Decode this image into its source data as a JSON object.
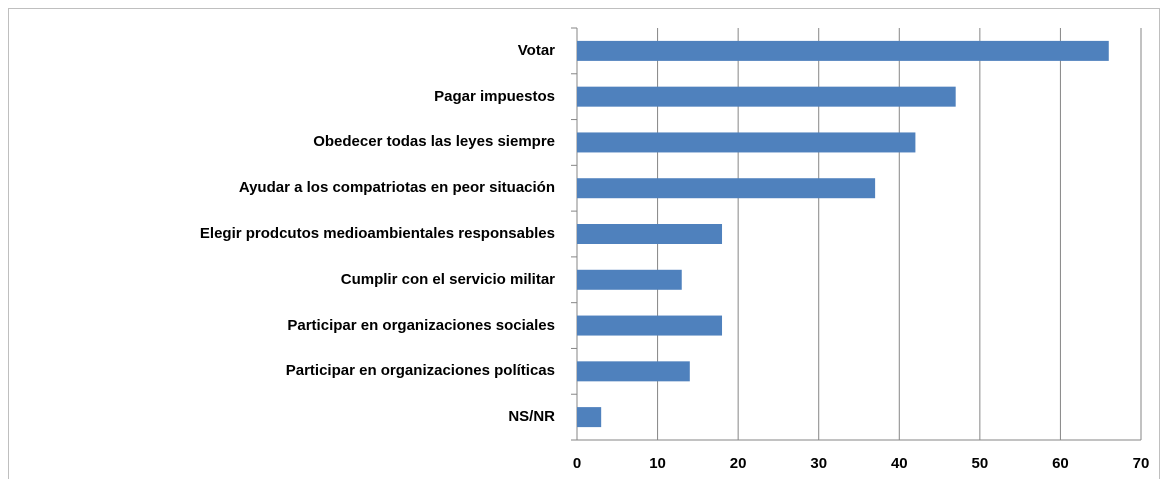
{
  "chart_data": {
    "type": "bar",
    "orientation": "horizontal",
    "categories": [
      "Votar",
      "Pagar impuestos",
      "Obedecer todas las leyes siempre",
      "Ayudar a los compatriotas en peor situación",
      "Elegir prodcutos medioambientales responsables",
      "Cumplir con el servicio militar",
      "Participar en organizaciones sociales",
      "Participar en organizaciones políticas",
      "NS/NR"
    ],
    "values": [
      66,
      47,
      42,
      37,
      18,
      13,
      18,
      14,
      3
    ],
    "color": "#4f81bd",
    "xlim": [
      0,
      70
    ],
    "xticks": [
      0,
      10,
      20,
      30,
      40,
      50,
      60,
      70
    ],
    "grid": true
  }
}
